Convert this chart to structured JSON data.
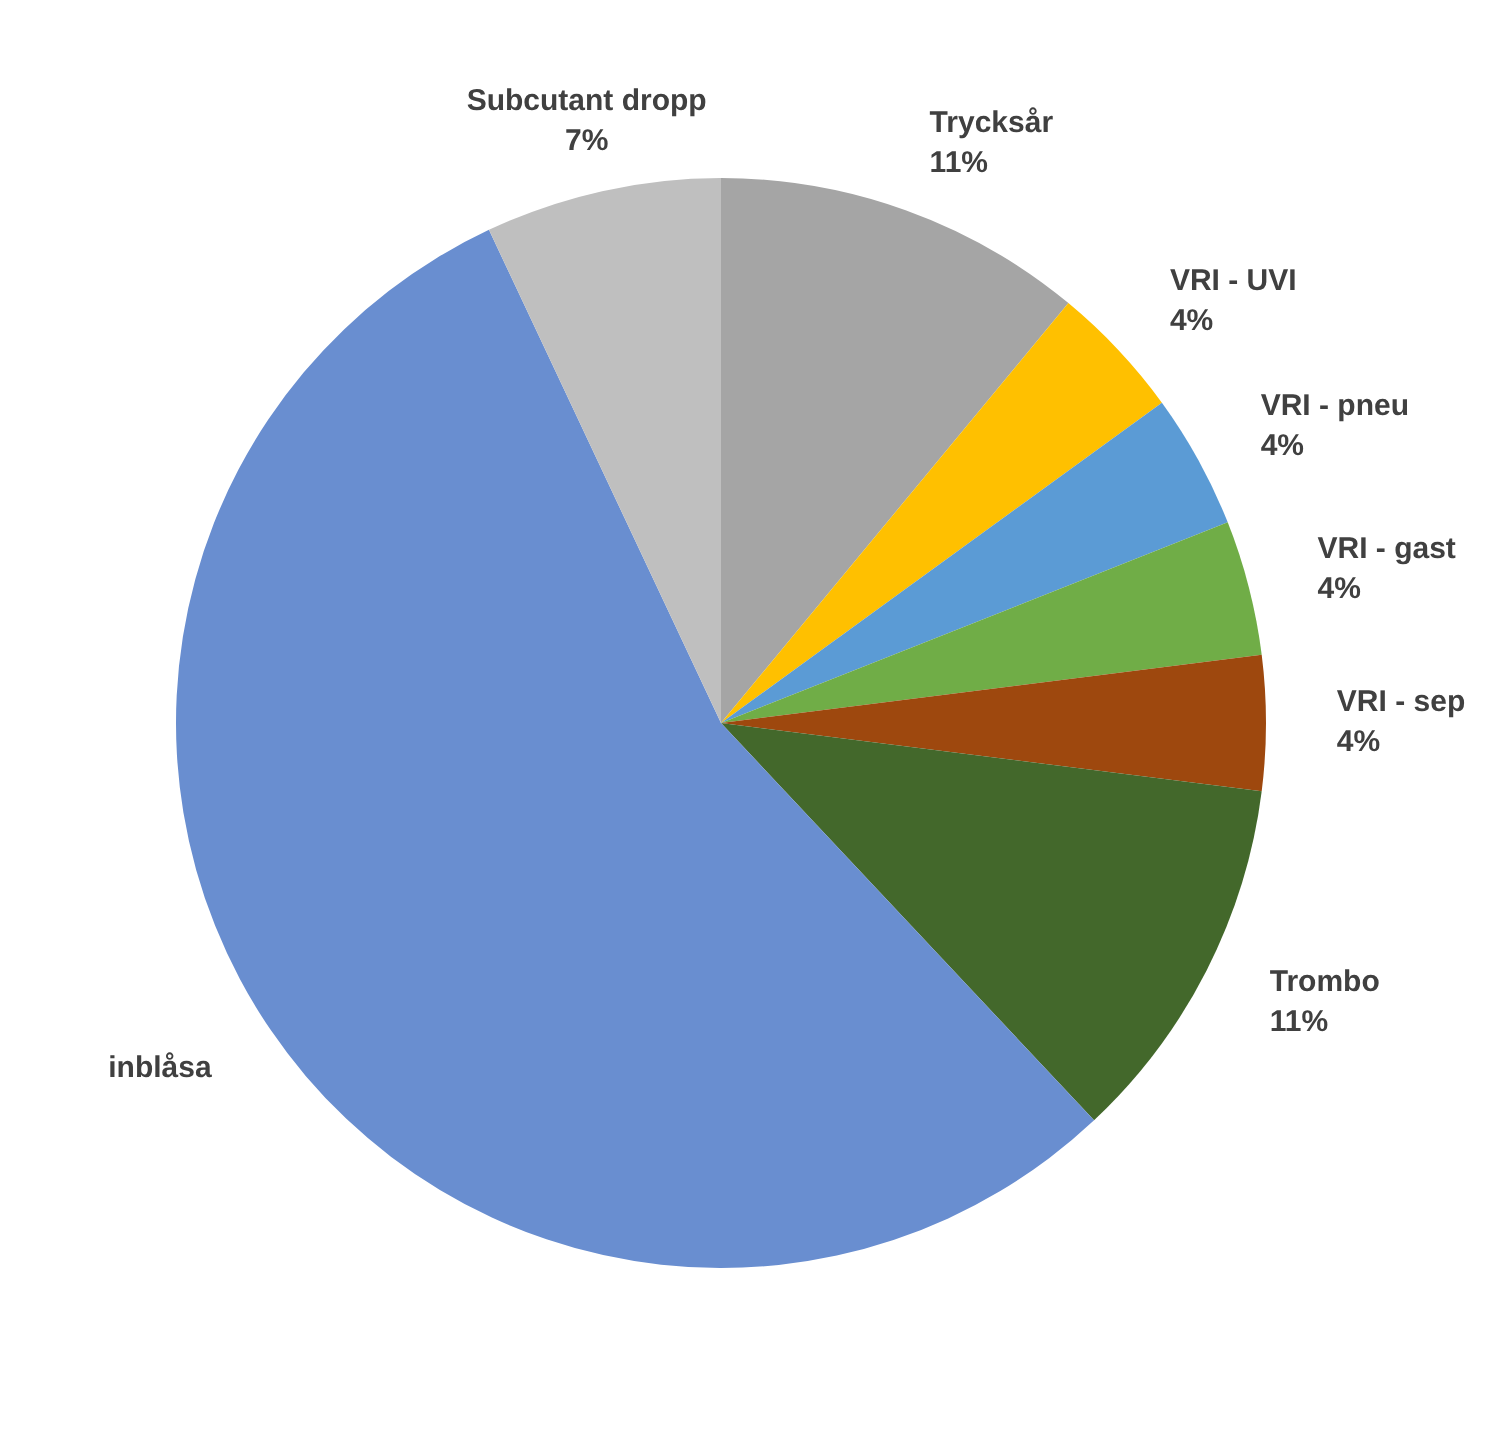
{
  "chart_data": {
    "type": "pie",
    "categories": [
      "Trycksår",
      "VRI - UVI",
      "VRI - pneu",
      "VRI - gast",
      "VRI - sep",
      "Trombo",
      "inblåsa",
      "Subcutant dropp"
    ],
    "values": [
      11,
      4,
      4,
      4,
      4,
      11,
      55,
      7
    ],
    "colors": [
      "#a5a5a5",
      "#ffc000",
      "#5b9bd5",
      "#70ad47",
      "#9e480e",
      "#43682b",
      "#698ed0",
      "#bfbfbf"
    ],
    "value_labels": [
      "11%",
      "4%",
      "4%",
      "4%",
      "4%",
      "11%",
      null,
      "7%"
    ],
    "legend": false
  }
}
